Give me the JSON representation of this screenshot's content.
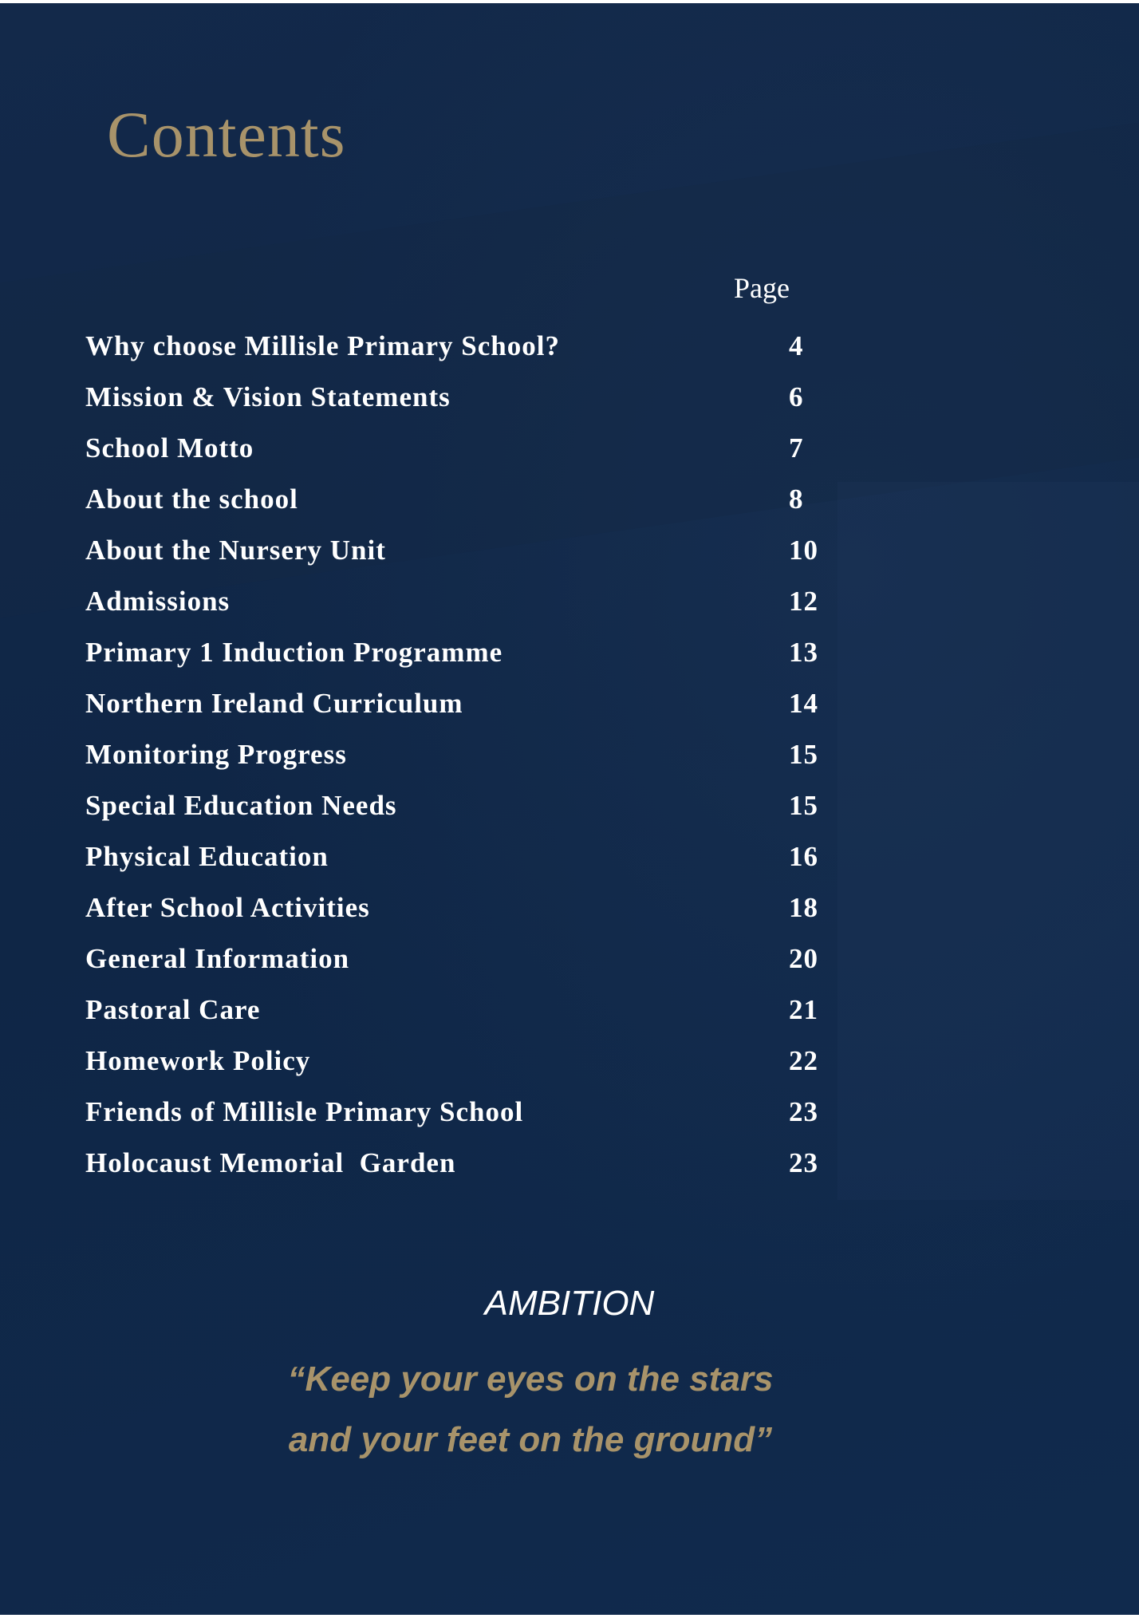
{
  "title": "Contents",
  "page_header": "Page",
  "entries": [
    {
      "label": "Why choose Millisle Primary School?",
      "page": "4"
    },
    {
      "label": "Mission & Vision Statements",
      "page": "6"
    },
    {
      "label": "School Motto",
      "page": "7"
    },
    {
      "label": "About the school",
      "page": "8"
    },
    {
      "label": "About the Nursery Unit",
      "page": "10"
    },
    {
      "label": "Admissions",
      "page": "12"
    },
    {
      "label": "Primary 1 Induction Programme",
      "page": "13"
    },
    {
      "label": "Northern Ireland Curriculum",
      "page": "14"
    },
    {
      "label": "Monitoring Progress",
      "page": "15"
    },
    {
      "label": "Special Education Needs",
      "page": "15"
    },
    {
      "label": "Physical Education",
      "page": "16"
    },
    {
      "label": "After School Activities",
      "page": "18"
    },
    {
      "label": "General Information",
      "page": "20"
    },
    {
      "label": "Pastoral Care",
      "page": "21"
    },
    {
      "label": "Homework Policy",
      "page": "22"
    },
    {
      "label": "Friends of Millisle Primary School",
      "page": "23"
    },
    {
      "label": "Holocaust Memorial  Garden",
      "page": "23"
    }
  ],
  "motto": {
    "heading": "AMBITION",
    "line1": "“Keep your eyes on the stars",
    "line2": "and your feet on the ground”"
  },
  "colors": {
    "background": "#10284a",
    "accent": "#a8936a",
    "text": "#ffffff"
  }
}
